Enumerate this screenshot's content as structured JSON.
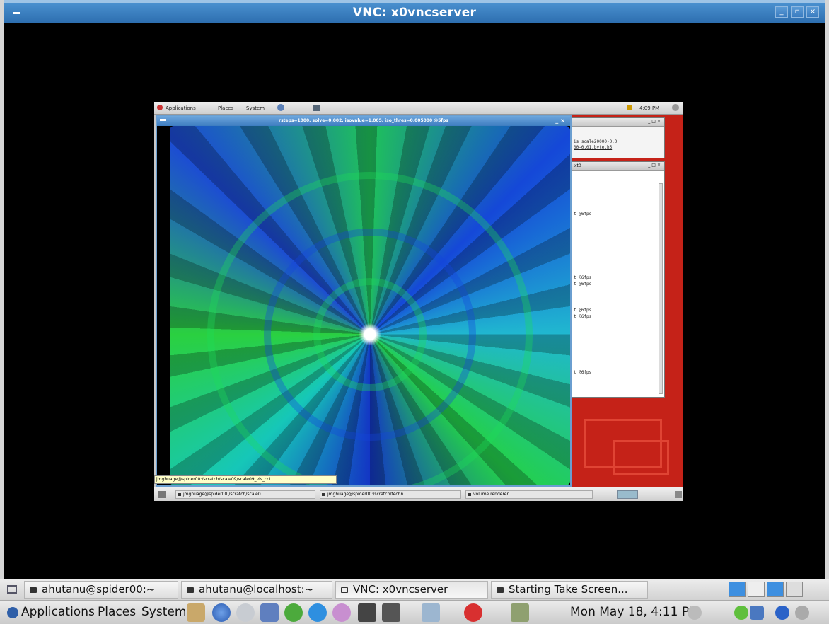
{
  "outer_window": {
    "title": "VNC: x0vncserver",
    "buttons": [
      "_",
      "▫",
      "×"
    ]
  },
  "remote": {
    "panel": {
      "applications": "Applications",
      "places": "Places",
      "system": "System",
      "clock": "4:09 PM"
    },
    "render_window_title": "rsteps=1000, solve=0.002, isovalue=1.005, iso_thres=0.005000 @5fps",
    "term_a_lines": [
      "is scale20000-0.0",
      "00-0.01.byte.h5"
    ],
    "term_b_title": "xt0",
    "term_b_lines": [
      "t @6fps",
      "t @6fps",
      "t @6fps",
      "t @6fps",
      "t @6fps",
      "t @6fps"
    ],
    "status_tip": "jmghuage@spider00:/scratch/scale09/scale09_vis_cct",
    "taskbar": [
      "jmghuage@spider00:/scratch/scale0...",
      "jmghuage@spider00:/scratch/techn...",
      "volume renderer"
    ]
  },
  "taskbar": {
    "items": [
      {
        "label": "ahutanu@spider00:~",
        "icon": "terminal-icon"
      },
      {
        "label": "ahutanu@localhost:~",
        "icon": "terminal-icon"
      },
      {
        "label": "VNC: x0vncserver",
        "icon": "window-icon"
      },
      {
        "label": "Starting Take Screen...",
        "icon": "terminal-icon"
      }
    ]
  },
  "menu_bar": {
    "applications": "Applications",
    "places": "Places",
    "system": "System",
    "clock": "Mon May 18,  4:11 PM"
  },
  "colors": {
    "title_blue": "#2e6fb0",
    "desktop_red": "#c52218",
    "swirl_green": "#1fc25a",
    "swirl_blue": "#1548d8"
  }
}
